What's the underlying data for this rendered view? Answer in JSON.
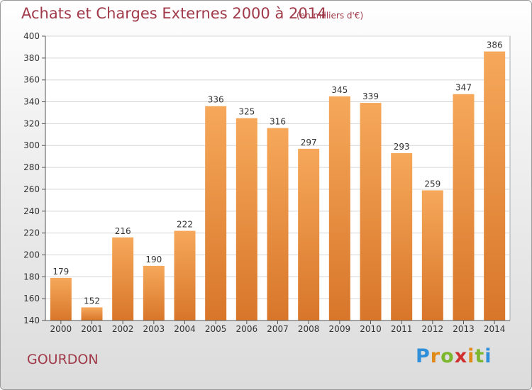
{
  "title": "Achats et Charges Externes 2000 à 2014",
  "unit_note": "(en milliers d'€)",
  "city": "GOURDON",
  "logo": {
    "letters": [
      "P",
      "r",
      "o",
      "x",
      "i",
      "t",
      "i"
    ],
    "colors": [
      "#2f8fd8",
      "#e08a1a",
      "#7cb72e",
      "#d03030",
      "#e08a1a",
      "#7cb72e",
      "#2f8fd8"
    ]
  },
  "colors": {
    "bar_light": "#f6a85a",
    "bar_dark": "#d8762a",
    "title": "#a03a4a"
  },
  "chart_data": {
    "type": "bar",
    "title": "Achats et Charges Externes 2000 à 2014",
    "xlabel": "",
    "ylabel": "",
    "categories": [
      "2000",
      "2001",
      "2002",
      "2003",
      "2004",
      "2005",
      "2006",
      "2007",
      "2008",
      "2009",
      "2010",
      "2011",
      "2012",
      "2013",
      "2014"
    ],
    "values": [
      179,
      152,
      216,
      190,
      222,
      336,
      325,
      316,
      297,
      345,
      339,
      293,
      259,
      347,
      386
    ],
    "ylim": [
      140,
      400
    ],
    "yticks": [
      140,
      160,
      180,
      200,
      220,
      240,
      260,
      280,
      300,
      320,
      340,
      360,
      380,
      400
    ],
    "grid": true
  }
}
